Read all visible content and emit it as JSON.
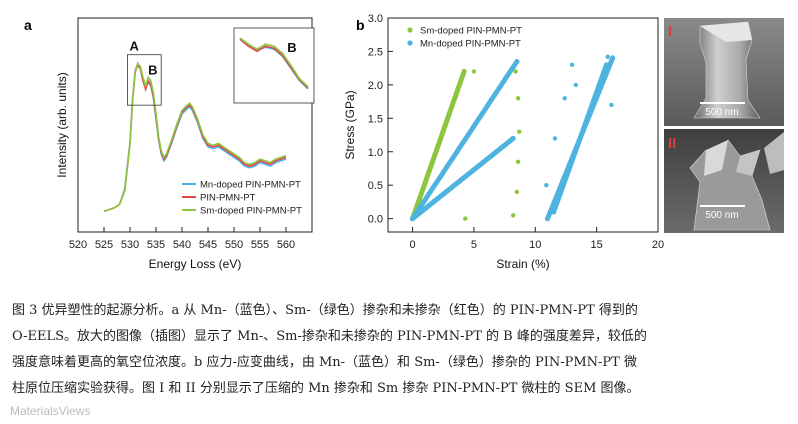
{
  "chart_data": [
    {
      "type": "line",
      "panel": "a",
      "xlabel": "Energy Loss (eV)",
      "ylabel": "Intensity (arb. units)",
      "xlim": [
        520,
        565
      ],
      "xticks": [
        "520",
        "525",
        "530",
        "535",
        "540",
        "545",
        "550",
        "555",
        "560"
      ],
      "yticks": false,
      "peak_labels": [
        "A",
        "B"
      ],
      "inset_label": "B",
      "legend": {
        "position": "bottom-right",
        "entries": [
          "Mn-doped PIN-PMN-PT",
          "PIN-PMN-PT",
          "Sm-doped PIN-PMN-PT"
        ]
      },
      "x": [
        525,
        526,
        527,
        528,
        529,
        530,
        530.5,
        531,
        531.5,
        532,
        532.5,
        533,
        533.5,
        534,
        534.5,
        535,
        535.5,
        536,
        536.5,
        537,
        538,
        539,
        540,
        541,
        541.5,
        542,
        543,
        544,
        545,
        546,
        547,
        548,
        549,
        550,
        551,
        552,
        553,
        554,
        555,
        556,
        557,
        558,
        559,
        560
      ],
      "series": [
        {
          "name": "Mn-doped PIN-PMN-PT",
          "color": "#4fb3e0",
          "values": [
            0.05,
            0.06,
            0.07,
            0.09,
            0.18,
            0.45,
            0.7,
            0.86,
            0.9,
            0.87,
            0.8,
            0.76,
            0.79,
            0.77,
            0.7,
            0.58,
            0.46,
            0.38,
            0.34,
            0.36,
            0.44,
            0.53,
            0.61,
            0.64,
            0.65,
            0.63,
            0.56,
            0.47,
            0.42,
            0.41,
            0.42,
            0.4,
            0.38,
            0.36,
            0.34,
            0.31,
            0.3,
            0.31,
            0.33,
            0.32,
            0.31,
            0.33,
            0.34,
            0.35
          ]
        },
        {
          "name": "PIN-PMN-PT",
          "color": "#e2474a",
          "values": [
            0.05,
            0.06,
            0.07,
            0.09,
            0.17,
            0.44,
            0.69,
            0.85,
            0.89,
            0.87,
            0.8,
            0.75,
            0.8,
            0.78,
            0.71,
            0.59,
            0.47,
            0.39,
            0.35,
            0.37,
            0.45,
            0.54,
            0.62,
            0.65,
            0.66,
            0.64,
            0.57,
            0.48,
            0.43,
            0.42,
            0.43,
            0.41,
            0.39,
            0.37,
            0.35,
            0.32,
            0.31,
            0.32,
            0.34,
            0.33,
            0.32,
            0.34,
            0.35,
            0.36
          ]
        },
        {
          "name": "Sm-doped PIN-PMN-PT",
          "color": "#8cc63f",
          "values": [
            0.05,
            0.06,
            0.07,
            0.09,
            0.17,
            0.44,
            0.69,
            0.85,
            0.9,
            0.88,
            0.82,
            0.77,
            0.82,
            0.8,
            0.73,
            0.61,
            0.48,
            0.4,
            0.36,
            0.38,
            0.46,
            0.55,
            0.63,
            0.66,
            0.67,
            0.65,
            0.58,
            0.49,
            0.44,
            0.43,
            0.44,
            0.42,
            0.4,
            0.38,
            0.36,
            0.33,
            0.32,
            0.33,
            0.35,
            0.34,
            0.33,
            0.35,
            0.36,
            0.37
          ]
        }
      ]
    },
    {
      "type": "scatter",
      "panel": "b",
      "xlabel": "Strain (%)",
      "ylabel": "Stress (GPa)",
      "xlim": [
        -2,
        20
      ],
      "ylim": [
        -0.2,
        3.0
      ],
      "xticks": [
        "0",
        "5",
        "10",
        "15",
        "20"
      ],
      "yticks": [
        "0.0",
        "0.5",
        "1.0",
        "1.5",
        "2.0",
        "2.5",
        "3.0"
      ],
      "legend": {
        "position": "top-left",
        "entries": [
          "Sm-doped PIN-PMN-PT",
          "Mn-doped PIN-PMN-PT"
        ]
      },
      "series": [
        {
          "name": "Sm-doped PIN-PMN-PT",
          "color": "#8cc63f",
          "loading_segments": [
            [
              [
                0,
                0
              ],
              [
                4.2,
                2.2
              ]
            ]
          ],
          "points": [
            [
              4.3,
              0.0
            ],
            [
              5.0,
              2.2
            ],
            [
              8.2,
              0.05
            ],
            [
              8.5,
              0.4
            ],
            [
              8.6,
              0.85
            ],
            [
              8.7,
              1.3
            ],
            [
              8.6,
              1.8
            ],
            [
              8.4,
              2.2
            ]
          ]
        },
        {
          "name": "Mn-doped PIN-PMN-PT",
          "color": "#4fb3e0",
          "loading_segments": [
            [
              [
                0,
                0
              ],
              [
                8.5,
                2.35
              ]
            ],
            [
              [
                0,
                0
              ],
              [
                8.2,
                1.2
              ]
            ],
            [
              [
                11,
                0
              ],
              [
                16.3,
                2.4
              ]
            ],
            [
              [
                11.5,
                0.1
              ],
              [
                15.8,
                2.3
              ]
            ]
          ],
          "points": [
            [
              10.9,
              0.5
            ],
            [
              11.6,
              1.2
            ],
            [
              12.4,
              1.8
            ],
            [
              13.0,
              2.3
            ],
            [
              13.3,
              2.0
            ],
            [
              15.9,
              2.42
            ],
            [
              16.3,
              2.41
            ],
            [
              16.2,
              1.7
            ]
          ]
        }
      ]
    }
  ],
  "panel_a": {
    "letter": "a"
  },
  "panel_b": {
    "letter": "b"
  },
  "sem": {
    "image1": {
      "label": "I",
      "scale": "500 nm"
    },
    "image2": {
      "label": "II",
      "scale": "500 nm"
    }
  },
  "caption": {
    "lines": [
      "图 3 优异塑性的起源分析。a 从 Mn-（蓝色）、Sm-（绿色）掺杂和未掺杂（红色）的 PIN-PMN-PT 得到的",
      "O-EELS。放大的图像（插图）显示了 Mn-、Sm-掺杂和未掺杂的 PIN-PMN-PT 的 B 峰的强度差异，较低的",
      "强度意味着更高的氧空位浓度。b 应力-应变曲线，由 Mn-（蓝色）和 Sm-（绿色）掺杂的 PIN-PMN-PT 微",
      "柱原位压缩实验获得。图 I 和 II 分别显示了压缩的 Mn 掺杂和 Sm 掺杂 PIN-PMN-PT 微柱的 SEM 图像。"
    ]
  },
  "watermark": "MaterialsViews"
}
